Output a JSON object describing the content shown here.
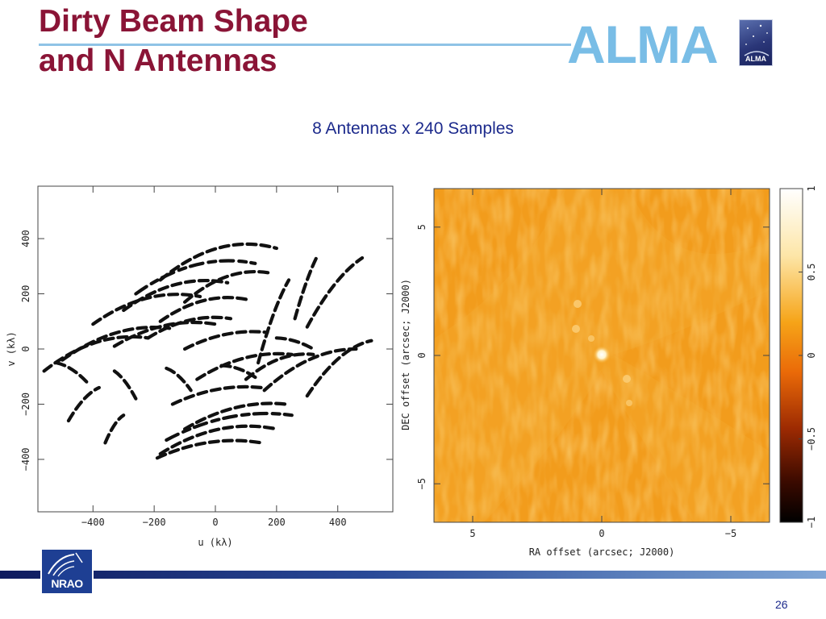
{
  "slide": {
    "title_line1": "Dirty Beam Shape",
    "title_line2": "and N Antennas",
    "subtitle": "8 Antennas x 240 Samples",
    "logo_text": "ALMA",
    "badge_text": "ALMA",
    "footer_logo_text": "NRAO",
    "page_number": "26"
  },
  "colors": {
    "title": "#8a1436",
    "accent_blue": "#79bde6",
    "subtitle": "#1c2a8c",
    "beam_background": "#f2a020",
    "footer_bar": "#1f3a88"
  },
  "chart_data": [
    {
      "type": "scatter",
      "name": "uv coverage",
      "xlabel": "u (kλ)",
      "ylabel": "v (kλ)",
      "xlim": [
        -580,
        580
      ],
      "ylim": [
        -590,
        590
      ],
      "xticks": [
        -400,
        -200,
        0,
        200,
        400
      ],
      "yticks": [
        -400,
        -200,
        0,
        200,
        400
      ],
      "xtick_labels": [
        "−400",
        "−200",
        "0",
        "200",
        "400"
      ],
      "ytick_labels": [
        "−400",
        "−200",
        "0",
        "200",
        "400"
      ],
      "tracks": [
        {
          "u": [
            -180,
            200
          ],
          "v": [
            250,
            365
          ],
          "bend": 40
        },
        {
          "u": [
            -100,
            180
          ],
          "v": [
            170,
            275
          ],
          "bend": 28
        },
        {
          "u": [
            -260,
            130
          ],
          "v": [
            200,
            310
          ],
          "bend": 34
        },
        {
          "u": [
            -300,
            40
          ],
          "v": [
            140,
            240
          ],
          "bend": 30
        },
        {
          "u": [
            -400,
            -50
          ],
          "v": [
            90,
            190
          ],
          "bend": 30
        },
        {
          "u": [
            -180,
            100
          ],
          "v": [
            100,
            180
          ],
          "bend": 24
        },
        {
          "u": [
            -220,
            50
          ],
          "v": [
            40,
            110
          ],
          "bend": 20
        },
        {
          "u": [
            -560,
            -220
          ],
          "v": [
            -80,
            40
          ],
          "bend": 30
        },
        {
          "u": [
            -500,
            -150
          ],
          "v": [
            -40,
            75
          ],
          "bend": 28
        },
        {
          "u": [
            -330,
            0
          ],
          "v": [
            10,
            90
          ],
          "bend": 24
        },
        {
          "u": [
            -100,
            170
          ],
          "v": [
            0,
            60
          ],
          "bend": 16
        },
        {
          "u": [
            -60,
            250
          ],
          "v": [
            -110,
            -20
          ],
          "bend": 22
        },
        {
          "u": [
            100,
            320
          ],
          "v": [
            -110,
            -20
          ],
          "bend": 20
        },
        {
          "u": [
            160,
            460
          ],
          "v": [
            -150,
            0
          ],
          "bend": 26
        },
        {
          "u": [
            300,
            510
          ],
          "v": [
            -170,
            30
          ],
          "bend": 26
        },
        {
          "u": [
            -140,
            150
          ],
          "v": [
            -200,
            -140
          ],
          "bend": 16
        },
        {
          "u": [
            -100,
            230
          ],
          "v": [
            -290,
            -200
          ],
          "bend": 22
        },
        {
          "u": [
            -160,
            250
          ],
          "v": [
            -330,
            -240
          ],
          "bend": 26
        },
        {
          "u": [
            -180,
            200
          ],
          "v": [
            -380,
            -290
          ],
          "bend": 30
        },
        {
          "u": [
            -190,
            150
          ],
          "v": [
            -395,
            -340
          ],
          "bend": 20
        },
        {
          "u": [
            -480,
            -380
          ],
          "v": [
            -260,
            -140
          ],
          "bend": 12
        },
        {
          "u": [
            -360,
            -300
          ],
          "v": [
            -340,
            -240
          ],
          "bend": 10
        },
        {
          "u": [
            140,
            240
          ],
          "v": [
            -50,
            250
          ],
          "bend": 18
        },
        {
          "u": [
            300,
            480
          ],
          "v": [
            80,
            330
          ],
          "bend": 20
        },
        {
          "u": [
            260,
            330
          ],
          "v": [
            110,
            330
          ],
          "bend": 10
        },
        {
          "u": [
            -520,
            -420
          ],
          "v": [
            -50,
            -120
          ],
          "bend": 8
        },
        {
          "u": [
            -330,
            -260
          ],
          "v": [
            -80,
            -180
          ],
          "bend": 8
        },
        {
          "u": [
            -160,
            -80
          ],
          "v": [
            -70,
            -150
          ],
          "bend": 8
        },
        {
          "u": [
            20,
            140
          ],
          "v": [
            -60,
            -110
          ],
          "bend": 8
        },
        {
          "u": [
            200,
            320
          ],
          "v": [
            40,
            0
          ],
          "bend": 6
        }
      ]
    },
    {
      "type": "heatmap",
      "name": "dirty beam",
      "xlabel": "RA offset (arcsec; J2000)",
      "ylabel": "DEC offset (arcsec; J2000)",
      "xlim": [
        6.5,
        -6.5
      ],
      "ylim": [
        -6.5,
        6.5
      ],
      "xticks": [
        5,
        0,
        -5
      ],
      "yticks": [
        5,
        0,
        -5
      ],
      "xtick_labels": [
        "5",
        "0",
        "−5"
      ],
      "ytick_labels": [
        "5",
        "0",
        "−5"
      ],
      "colorbar_range": [
        -1,
        1
      ],
      "colorbar_ticks": [
        1,
        0.5,
        0,
        -0.5,
        -1
      ],
      "colorbar_tick_labels": [
        "1",
        "0.5",
        "0",
        "−0.5",
        "−1"
      ],
      "peak": {
        "ra": 0,
        "dec": 0,
        "value": 1
      }
    }
  ]
}
